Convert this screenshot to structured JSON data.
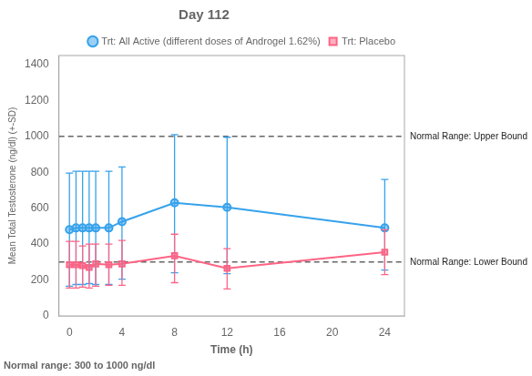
{
  "chart_data": {
    "type": "line",
    "title": "Day 112",
    "xlabel": "Time (h)",
    "ylabel": "Mean Total Testosterone (ng/dl) (+-SD)",
    "footnote": "Normal range: 300 to 1000 ng/dl",
    "x": [
      0,
      0.5,
      1,
      1.5,
      2,
      3,
      4,
      8,
      12,
      24
    ],
    "series": [
      {
        "name": "Trt: All Active (different doses of Androgel 1.62%)",
        "marker": "circle",
        "line_style": "solid",
        "values": [
          480,
          490,
          490,
          490,
          490,
          490,
          525,
          630,
          605,
          490
        ],
        "yerr_lo": [
          315,
          315,
          315,
          310,
          315,
          315,
          320,
          390,
          370,
          235
        ],
        "yerr_hi": [
          315,
          315,
          315,
          315,
          315,
          315,
          305,
          380,
          390,
          270
        ]
      },
      {
        "name": "Trt: Placebo",
        "marker": "square",
        "line_style": "solid",
        "values": [
          285,
          285,
          280,
          270,
          290,
          285,
          290,
          335,
          265,
          355
        ],
        "yerr_lo": [
          130,
          130,
          120,
          115,
          125,
          115,
          120,
          150,
          115,
          125
        ],
        "yerr_hi": [
          130,
          130,
          110,
          130,
          110,
          115,
          130,
          120,
          110,
          125
        ]
      }
    ],
    "annotations": [
      {
        "y": 1000,
        "label": "Normal Range: Upper Bound",
        "line_style": "dashed"
      },
      {
        "y": 300,
        "label": "Normal Range: Lower Bound",
        "line_style": "dashed"
      }
    ],
    "xlim": [
      -0.8,
      25.5
    ],
    "xticks": [
      0,
      4,
      8,
      12,
      16,
      20,
      24
    ],
    "ylim": [
      0,
      1450
    ],
    "yticks": [
      0,
      200,
      400,
      600,
      800,
      1000,
      1200,
      1400
    ],
    "grid": false,
    "legend": "upper right"
  }
}
